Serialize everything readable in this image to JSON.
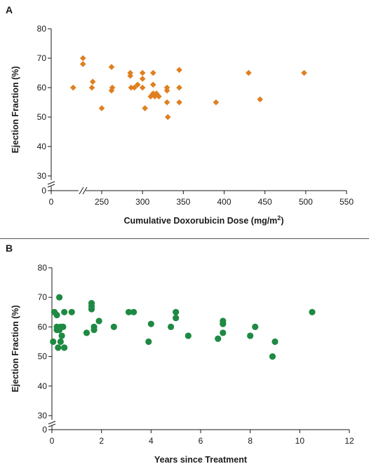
{
  "panels": [
    {
      "label": "A"
    },
    {
      "label": "B"
    }
  ],
  "chart_data": [
    {
      "type": "scatter",
      "panel": "A",
      "xlabel": "Cumulative Doxorubicin Dose (mg/m²)",
      "ylabel": "Ejection Fraction (%)",
      "xlim": [
        0,
        550
      ],
      "ylim": [
        0,
        80
      ],
      "axis_break_x": [
        0,
        200
      ],
      "axis_break_y": [
        0,
        30
      ],
      "xticks": [
        0,
        250,
        300,
        350,
        400,
        450,
        500,
        550
      ],
      "yticks": [
        0,
        30,
        40,
        50,
        60,
        70,
        80
      ],
      "marker": "diamond",
      "color": "#e07f1f",
      "grid": false,
      "points": [
        {
          "x": 215,
          "y": 60
        },
        {
          "x": 227,
          "y": 70
        },
        {
          "x": 227,
          "y": 68
        },
        {
          "x": 239,
          "y": 62
        },
        {
          "x": 238,
          "y": 60
        },
        {
          "x": 250,
          "y": 53
        },
        {
          "x": 262,
          "y": 59
        },
        {
          "x": 263,
          "y": 60
        },
        {
          "x": 262,
          "y": 67
        },
        {
          "x": 285,
          "y": 65
        },
        {
          "x": 285,
          "y": 64
        },
        {
          "x": 286,
          "y": 60
        },
        {
          "x": 290,
          "y": 60
        },
        {
          "x": 294,
          "y": 61
        },
        {
          "x": 300,
          "y": 65
        },
        {
          "x": 300,
          "y": 63
        },
        {
          "x": 300,
          "y": 60
        },
        {
          "x": 303,
          "y": 53
        },
        {
          "x": 310,
          "y": 57
        },
        {
          "x": 313,
          "y": 65
        },
        {
          "x": 313,
          "y": 58
        },
        {
          "x": 313,
          "y": 61
        },
        {
          "x": 315,
          "y": 57
        },
        {
          "x": 317,
          "y": 58
        },
        {
          "x": 320,
          "y": 57
        },
        {
          "x": 330,
          "y": 60
        },
        {
          "x": 330,
          "y": 59
        },
        {
          "x": 330,
          "y": 55
        },
        {
          "x": 331,
          "y": 50
        },
        {
          "x": 345,
          "y": 66
        },
        {
          "x": 345,
          "y": 60
        },
        {
          "x": 345,
          "y": 55
        },
        {
          "x": 390,
          "y": 55
        },
        {
          "x": 430,
          "y": 65
        },
        {
          "x": 444,
          "y": 56
        },
        {
          "x": 498,
          "y": 65
        }
      ]
    },
    {
      "type": "scatter",
      "panel": "B",
      "xlabel": "Years since Treatment",
      "ylabel": "Ejection Fraction (%)",
      "xlim": [
        0,
        12
      ],
      "ylim": [
        0,
        80
      ],
      "axis_break_y": [
        0,
        30
      ],
      "xticks": [
        0,
        2,
        4,
        6,
        8,
        10,
        12
      ],
      "yticks": [
        0,
        30,
        40,
        50,
        60,
        70,
        80
      ],
      "marker": "circle",
      "color": "#1e8a43",
      "grid": false,
      "points": [
        {
          "x": 0.05,
          "y": 55
        },
        {
          "x": 0.1,
          "y": 65
        },
        {
          "x": 0.2,
          "y": 64
        },
        {
          "x": 0.2,
          "y": 60
        },
        {
          "x": 0.2,
          "y": 59
        },
        {
          "x": 0.25,
          "y": 53
        },
        {
          "x": 0.3,
          "y": 70
        },
        {
          "x": 0.3,
          "y": 59
        },
        {
          "x": 0.35,
          "y": 60
        },
        {
          "x": 0.35,
          "y": 55
        },
        {
          "x": 0.4,
          "y": 57
        },
        {
          "x": 0.45,
          "y": 60
        },
        {
          "x": 0.5,
          "y": 65
        },
        {
          "x": 0.5,
          "y": 53
        },
        {
          "x": 0.8,
          "y": 65
        },
        {
          "x": 1.4,
          "y": 58
        },
        {
          "x": 1.6,
          "y": 68
        },
        {
          "x": 1.6,
          "y": 67
        },
        {
          "x": 1.6,
          "y": 66
        },
        {
          "x": 1.7,
          "y": 60
        },
        {
          "x": 1.7,
          "y": 59
        },
        {
          "x": 1.9,
          "y": 62
        },
        {
          "x": 2.5,
          "y": 60
        },
        {
          "x": 3.1,
          "y": 65
        },
        {
          "x": 3.3,
          "y": 65
        },
        {
          "x": 3.9,
          "y": 55
        },
        {
          "x": 4.0,
          "y": 61
        },
        {
          "x": 4.8,
          "y": 60
        },
        {
          "x": 5.0,
          "y": 65
        },
        {
          "x": 5.0,
          "y": 63
        },
        {
          "x": 5.5,
          "y": 57
        },
        {
          "x": 6.7,
          "y": 56
        },
        {
          "x": 6.9,
          "y": 62
        },
        {
          "x": 6.9,
          "y": 61
        },
        {
          "x": 6.9,
          "y": 58
        },
        {
          "x": 8.0,
          "y": 57
        },
        {
          "x": 8.2,
          "y": 60
        },
        {
          "x": 8.9,
          "y": 50
        },
        {
          "x": 9.0,
          "y": 55
        },
        {
          "x": 10.5,
          "y": 65
        }
      ]
    }
  ]
}
